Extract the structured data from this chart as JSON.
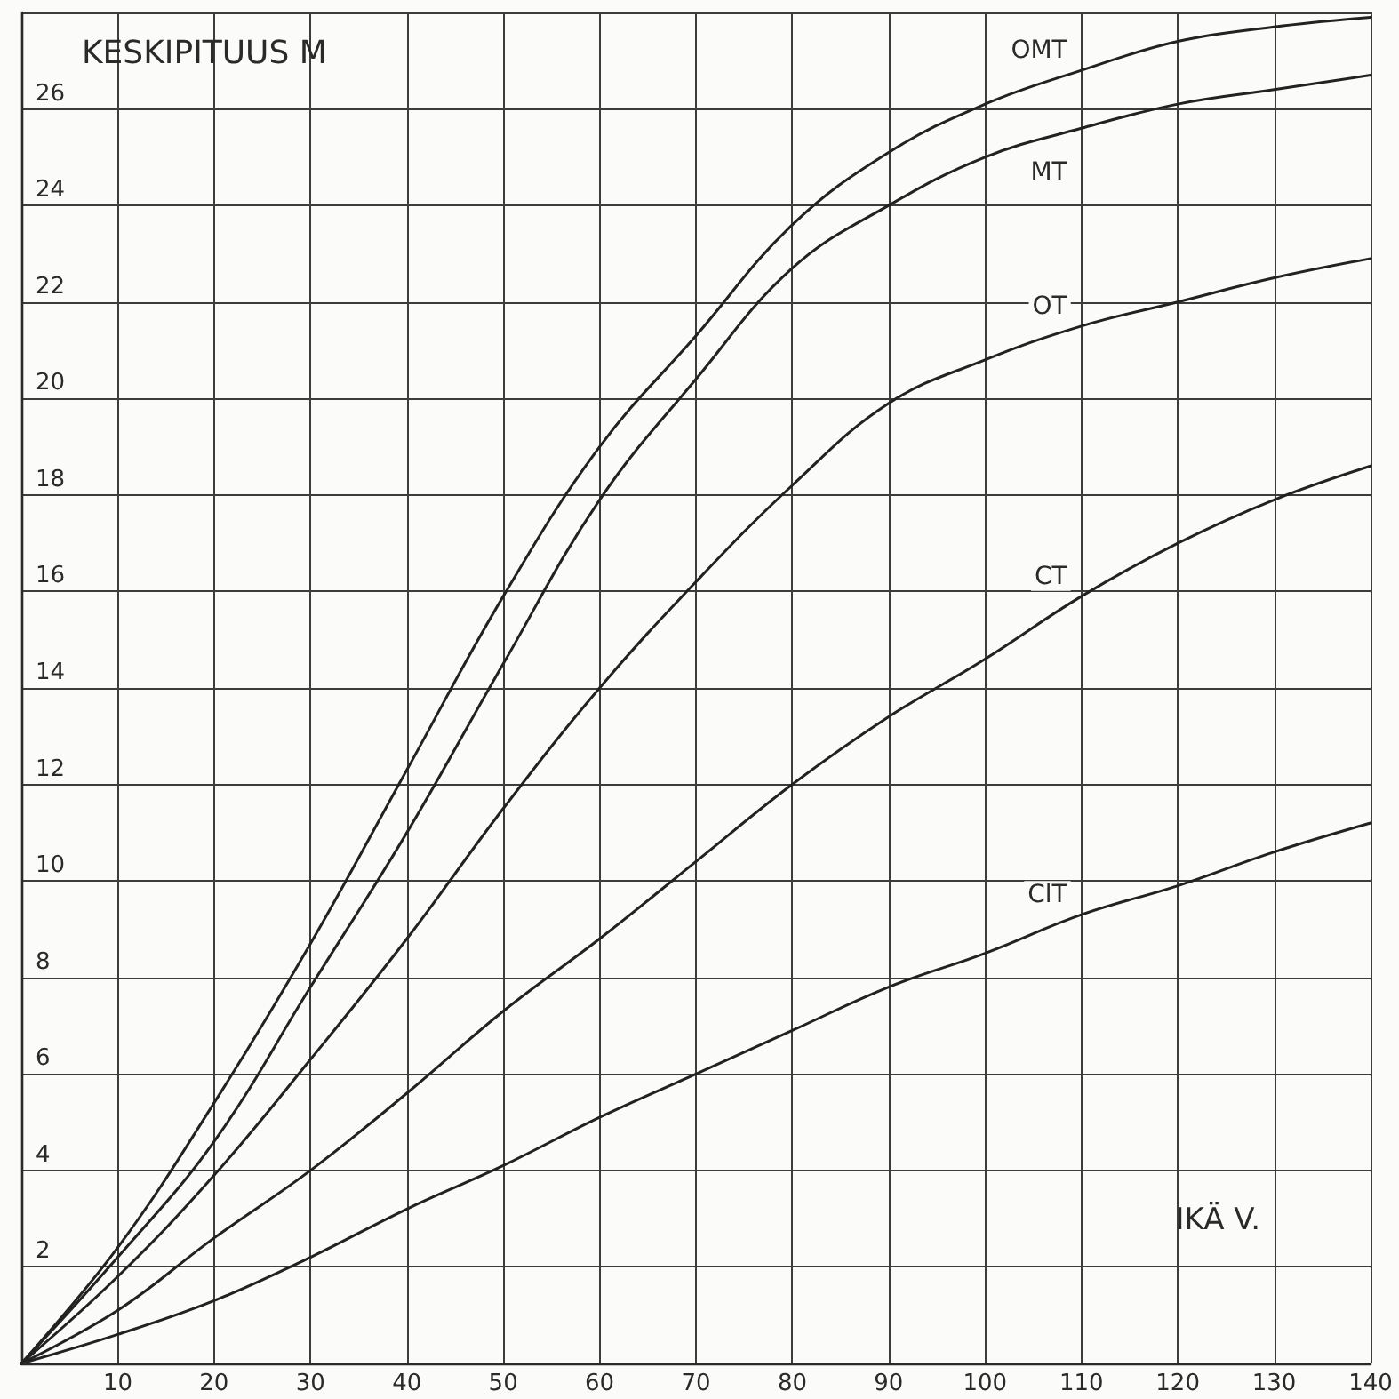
{
  "chart_data": {
    "type": "line",
    "xlabel": "IKÄ V.",
    "ylabel": "KESKIPITUUS M",
    "x": [
      0,
      10,
      20,
      30,
      40,
      50,
      60,
      70,
      80,
      90,
      100,
      110,
      120,
      130,
      140
    ],
    "series": [
      {
        "name": "OMT",
        "color": "#222222",
        "values": [
          0,
          2.4,
          5.4,
          8.7,
          12.3,
          15.9,
          19.0,
          21.3,
          23.6,
          25.1,
          26.1,
          26.8,
          27.4,
          27.7,
          27.9
        ]
      },
      {
        "name": "MT",
        "color": "#222222",
        "values": [
          0,
          2.2,
          4.6,
          7.8,
          11.0,
          14.5,
          17.9,
          20.4,
          22.7,
          24.0,
          25.0,
          25.6,
          26.1,
          26.4,
          26.7
        ]
      },
      {
        "name": "OT",
        "color": "#222222",
        "values": [
          0,
          1.8,
          3.9,
          6.3,
          8.8,
          11.5,
          14.0,
          16.2,
          18.2,
          19.9,
          20.8,
          21.5,
          22.0,
          22.5,
          22.9
        ]
      },
      {
        "name": "CT",
        "color": "#222222",
        "values": [
          0,
          1.1,
          2.6,
          4.0,
          5.6,
          7.3,
          8.8,
          10.4,
          12.0,
          13.4,
          14.6,
          15.9,
          17.0,
          17.9,
          18.6
        ]
      },
      {
        "name": "ClT",
        "color": "#222222",
        "values": [
          0,
          0.6,
          1.3,
          2.2,
          3.2,
          4.1,
          5.1,
          6.0,
          6.9,
          7.8,
          8.5,
          9.3,
          9.9,
          10.6,
          11.2
        ]
      }
    ],
    "xlim": [
      0,
      140
    ],
    "ylim": [
      0,
      28
    ],
    "xticks": [
      {
        "value": 0,
        "label": null
      },
      10,
      20,
      30,
      40,
      50,
      60,
      70,
      80,
      90,
      100,
      110,
      120,
      130,
      140
    ],
    "yticks": [
      {
        "value": 0,
        "label": null
      },
      2,
      4,
      6,
      8,
      10,
      12,
      14,
      16,
      18,
      20,
      22,
      24,
      26,
      {
        "value": 28,
        "label": null
      }
    ],
    "grid": true
  }
}
